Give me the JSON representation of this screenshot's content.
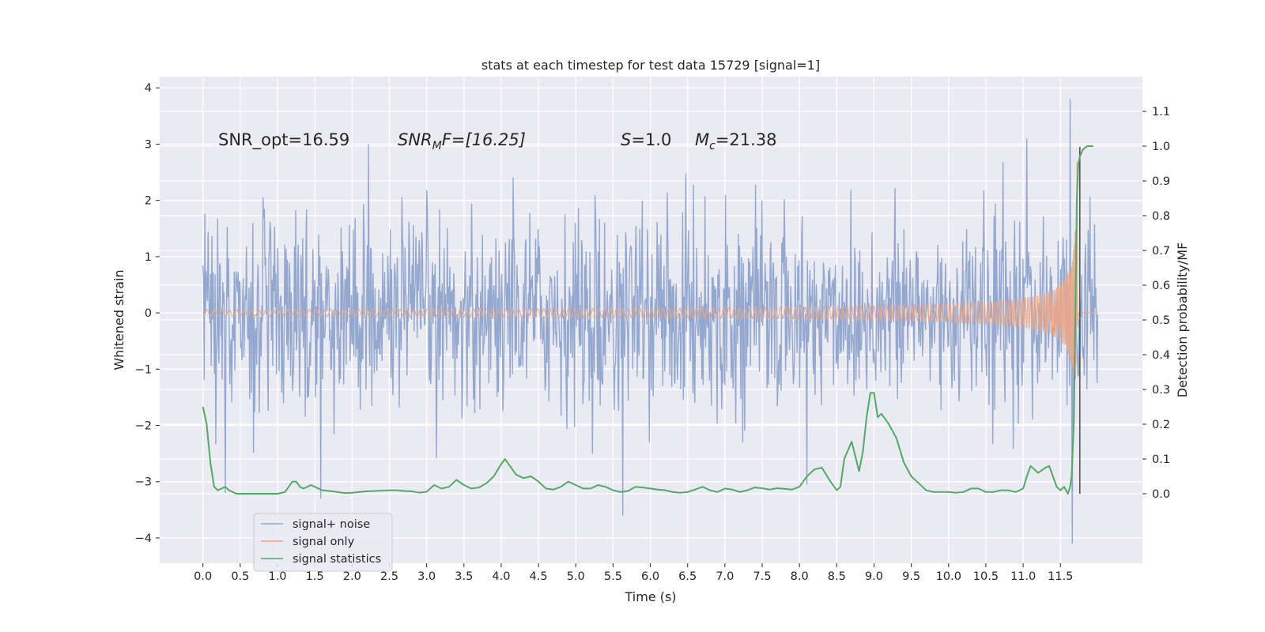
{
  "chart_data": {
    "type": "line",
    "title": "stats at each timestep for test data 15729 [signal=1]",
    "xlabel": "Time (s)",
    "ylabel": "Whitened strain",
    "ylabel_right": "Detection probability/MF",
    "xlim": [
      -0.58,
      12.6
    ],
    "ylim": [
      -4.45,
      4.2
    ],
    "ylim_right": [
      -0.2,
      1.2
    ],
    "x_ticks": [
      0.0,
      0.5,
      1.0,
      1.5,
      2.0,
      2.5,
      3.0,
      3.5,
      4.0,
      4.5,
      5.0,
      5.5,
      6.0,
      6.5,
      7.0,
      7.5,
      8.0,
      8.5,
      9.0,
      9.5,
      10.0,
      10.5,
      11.0,
      11.5
    ],
    "x_tick_labels": [
      "0.0",
      "0.5",
      "1.0",
      "1.5",
      "2.0",
      "2.5",
      "3.0",
      "3.5",
      "4.0",
      "4.5",
      "5.0",
      "5.5",
      "6.0",
      "6.5",
      "7.0",
      "7.5",
      "8.0",
      "8.5",
      "9.0",
      "9.5",
      "10.0",
      "10.5",
      "11.0",
      "11.5"
    ],
    "y_ticks": [
      4,
      3,
      2,
      1,
      0,
      -1,
      -2,
      -3,
      -4
    ],
    "y_tick_labels": [
      "4",
      "3",
      "2",
      "1",
      "0",
      "−1",
      "−2",
      "−3",
      "−4"
    ],
    "y_right_ticks": [
      1.1,
      1.0,
      0.9,
      0.8,
      0.7,
      0.6,
      0.5,
      0.4,
      0.3,
      0.2,
      0.1,
      0.0
    ],
    "y_right_tick_labels": [
      "1.1",
      "1.0",
      "0.9",
      "0.8",
      "0.7",
      "0.6",
      "0.5",
      "0.4",
      "0.3",
      "0.2",
      "0.1",
      "0.0"
    ],
    "grid": true,
    "legend": {
      "placement": "lower-left",
      "entries": [
        {
          "name": "signal+ noise",
          "color": "#8fa4cc"
        },
        {
          "name": "signal only",
          "color": "#e9a68a"
        },
        {
          "name": "signal statistics",
          "color": "#55a868"
        }
      ]
    },
    "annotations": {
      "snr_opt": "SNR_opt=16.59",
      "snr_mf_main": "SNR",
      "snr_mf_sub": "M",
      "snr_mf_rest": "F=[16.25]",
      "s_main": "S",
      "s_rest": "=1.0",
      "mc_main": "M",
      "mc_sub": "c",
      "mc_rest": "=21.38"
    },
    "noise": {
      "duration": 12.0,
      "samples": 1400,
      "typical_max": 2.6,
      "extreme_max": 3.8,
      "extreme_min": -4.1,
      "color": "#8fa4cc"
    },
    "signal_only": {
      "color": "#e9a68a",
      "merger_time": 11.72,
      "peak_amplitude": 3.2
    },
    "statistics": {
      "color": "#55a868",
      "x": [
        0.0,
        0.05,
        0.1,
        0.15,
        0.2,
        0.25,
        0.3,
        0.35,
        0.4,
        0.45,
        0.5,
        0.6,
        0.7,
        0.8,
        0.9,
        1.0,
        1.1,
        1.15,
        1.2,
        1.25,
        1.3,
        1.35,
        1.4,
        1.45,
        1.5,
        1.6,
        1.7,
        1.8,
        1.9,
        2.0,
        2.1,
        2.2,
        2.3,
        2.4,
        2.5,
        2.6,
        2.7,
        2.8,
        2.9,
        3.0,
        3.1,
        3.2,
        3.3,
        3.4,
        3.5,
        3.6,
        3.7,
        3.8,
        3.9,
        4.0,
        4.05,
        4.1,
        4.2,
        4.3,
        4.4,
        4.5,
        4.6,
        4.7,
        4.8,
        4.9,
        5.0,
        5.1,
        5.2,
        5.3,
        5.4,
        5.5,
        5.6,
        5.7,
        5.8,
        5.9,
        6.0,
        6.1,
        6.2,
        6.3,
        6.4,
        6.5,
        6.6,
        6.7,
        6.8,
        6.9,
        7.0,
        7.1,
        7.2,
        7.3,
        7.4,
        7.5,
        7.6,
        7.7,
        7.8,
        7.9,
        8.0,
        8.1,
        8.2,
        8.3,
        8.4,
        8.5,
        8.55,
        8.6,
        8.7,
        8.8,
        8.85,
        8.9,
        8.95,
        9.0,
        9.05,
        9.1,
        9.2,
        9.3,
        9.4,
        9.5,
        9.6,
        9.7,
        9.8,
        9.9,
        10.0,
        10.1,
        10.2,
        10.3,
        10.4,
        10.5,
        10.6,
        10.7,
        10.8,
        10.9,
        11.0,
        11.05,
        11.1,
        11.15,
        11.2,
        11.3,
        11.35,
        11.4,
        11.45,
        11.5,
        11.55,
        11.6,
        11.63,
        11.65,
        11.68,
        11.7,
        11.72,
        11.74,
        11.76,
        11.78,
        11.8,
        11.83,
        11.86,
        11.9,
        11.94
      ],
      "y": [
        0.25,
        0.2,
        0.09,
        0.02,
        0.01,
        0.015,
        0.02,
        0.01,
        0.005,
        0.0,
        0.0,
        0.0,
        0.0,
        0.0,
        0.0,
        0.0,
        0.005,
        0.02,
        0.035,
        0.035,
        0.02,
        0.015,
        0.02,
        0.025,
        0.02,
        0.01,
        0.008,
        0.005,
        0.002,
        0.003,
        0.005,
        0.007,
        0.008,
        0.009,
        0.01,
        0.01,
        0.008,
        0.007,
        0.003,
        0.006,
        0.025,
        0.015,
        0.02,
        0.04,
        0.025,
        0.015,
        0.018,
        0.03,
        0.05,
        0.085,
        0.1,
        0.085,
        0.055,
        0.045,
        0.05,
        0.035,
        0.015,
        0.012,
        0.02,
        0.035,
        0.025,
        0.015,
        0.015,
        0.025,
        0.02,
        0.01,
        0.005,
        0.008,
        0.02,
        0.018,
        0.015,
        0.012,
        0.01,
        0.005,
        0.003,
        0.005,
        0.012,
        0.02,
        0.01,
        0.005,
        0.015,
        0.012,
        0.005,
        0.01,
        0.018,
        0.016,
        0.012,
        0.016,
        0.014,
        0.012,
        0.02,
        0.05,
        0.07,
        0.075,
        0.04,
        0.01,
        0.02,
        0.1,
        0.15,
        0.065,
        0.12,
        0.22,
        0.29,
        0.29,
        0.22,
        0.23,
        0.2,
        0.16,
        0.09,
        0.05,
        0.03,
        0.01,
        0.005,
        0.005,
        0.005,
        0.003,
        0.005,
        0.015,
        0.015,
        0.005,
        0.005,
        0.01,
        0.01,
        0.005,
        0.015,
        0.05,
        0.08,
        0.07,
        0.06,
        0.075,
        0.08,
        0.05,
        0.02,
        0.01,
        0.02,
        0.0,
        0.02,
        0.05,
        0.2,
        0.5,
        0.85,
        0.95,
        0.97,
        0.98,
        0.99,
        0.995,
        1.0,
        1.0,
        1.0
      ]
    }
  }
}
